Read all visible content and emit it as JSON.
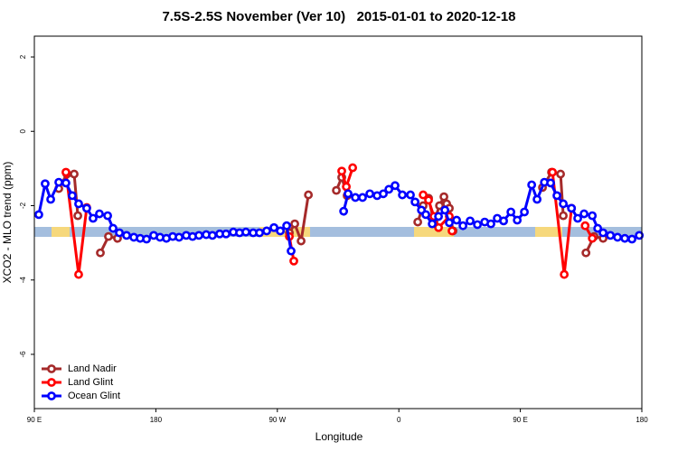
{
  "chart_data": {
    "type": "line",
    "title": "7.5S-2.5S November (Ver 10)   2015-01-01 to 2020-12-18",
    "xlabel": "Longitude",
    "ylabel": "XCO2 - MLO trend (ppm)",
    "xlim": [
      90,
      540
    ],
    "xticks": [
      {
        "value": 90,
        "label": "90 E"
      },
      {
        "value": 180,
        "label": "180"
      },
      {
        "value": 270,
        "label": "90 W"
      },
      {
        "value": 360,
        "label": "0"
      },
      {
        "value": 450,
        "label": "90 E"
      },
      {
        "value": 540,
        "label": "180"
      }
    ],
    "ylim": [
      -7.46,
      2.56
    ],
    "yticks": [
      2,
      0,
      -2,
      -4,
      -6
    ],
    "legend": "lower left",
    "series": [
      {
        "name": "Land Nadir",
        "color": "#a52a2a",
        "x": [
          108.1,
          114.1,
          119.5,
          122.2,
          null,
          138.9,
          144.9,
          151.6,
          null,
          278.9,
          282.9,
          287.6,
          293.0,
          null,
          313.7,
          317.7,
          321.7,
          null,
          374.0,
          378.0,
          382.0,
          386.0,
          390.1,
          393.4,
          395.4,
          397.4,
          400.1,
          null,
          466.4,
          473.1,
          479.8,
          481.8,
          null,
          498.6,
          504.6,
          511.3
        ],
        "values": [
          -1.54,
          -1.15,
          -1.15,
          -2.27,
          null,
          -3.27,
          -2.83,
          -2.88,
          null,
          -2.73,
          -2.49,
          -2.95,
          -1.71,
          null,
          -1.59,
          -1.24,
          -1.73,
          null,
          -2.44,
          -2.0,
          -1.8,
          -2.44,
          -2.0,
          -1.76,
          -1.95,
          -2.07,
          -2.68,
          null,
          -1.51,
          -1.1,
          -1.15,
          -2.27,
          null,
          -3.27,
          -2.83,
          -2.88
        ]
      },
      {
        "name": "Land Glint",
        "color": "#ff0000",
        "x": [
          113.4,
          122.8,
          128.8,
          null,
          278.9,
          282.2,
          null,
          317.7,
          321.1,
          325.8,
          null,
          378.0,
          382.0,
          386.0,
          389.4,
          397.4,
          399.4,
          null,
          473.8,
          482.5,
          487.9,
          null,
          498.0,
          503.3
        ],
        "values": [
          -1.1,
          -3.85,
          -2.05,
          null,
          -2.83,
          -3.49,
          null,
          -1.07,
          -1.49,
          -0.98,
          null,
          -1.71,
          -1.85,
          -2.29,
          -2.59,
          -2.29,
          -2.68,
          null,
          -1.1,
          -3.85,
          -2.07,
          null,
          -2.54,
          -2.88
        ]
      },
      {
        "name": "Ocean Glint",
        "color": "#0000ff",
        "x": [
          93.3,
          98.0,
          102.1,
          108.1,
          113.4,
          118.1,
          122.8,
          128.8,
          133.5,
          138.2,
          144.3,
          148.3,
          153.0,
          158.3,
          163.7,
          168.4,
          173.1,
          178.4,
          183.1,
          187.8,
          192.5,
          197.2,
          202.5,
          207.2,
          211.9,
          217.3,
          221.9,
          227.3,
          232.0,
          237.4,
          242.0,
          246.7,
          252.1,
          256.8,
          262.1,
          267.5,
          272.2,
          276.9,
          280.2,
          null,
          319.1,
          322.4,
          327.8,
          333.1,
          338.5,
          343.9,
          348.5,
          352.6,
          357.2,
          362.6,
          368.6,
          372.0,
          376.7,
          380.0,
          384.7,
          389.4,
          394.1,
          397.4,
          402.8,
          407.5,
          412.8,
          418.2,
          423.6,
          428.2,
          432.9,
          437.6,
          443.0,
          447.7,
          453.0,
          458.4,
          462.4,
          467.8,
          472.4,
          477.1,
          481.8,
          487.9,
          492.5,
          497.2,
          503.3,
          507.3,
          511.3,
          516.7,
          522.0,
          527.4,
          532.7,
          538.1
        ],
        "values": [
          -2.24,
          -1.41,
          -1.83,
          -1.37,
          -1.39,
          -1.73,
          -1.95,
          -2.07,
          -2.34,
          -2.22,
          -2.27,
          -2.61,
          -2.73,
          -2.8,
          -2.85,
          -2.88,
          -2.9,
          -2.8,
          -2.85,
          -2.88,
          -2.83,
          -2.85,
          -2.8,
          -2.83,
          -2.8,
          -2.78,
          -2.8,
          -2.76,
          -2.76,
          -2.71,
          -2.73,
          -2.71,
          -2.73,
          -2.73,
          -2.68,
          -2.59,
          -2.68,
          -2.54,
          -3.22,
          null,
          -2.15,
          -1.68,
          -1.78,
          -1.78,
          -1.68,
          -1.73,
          -1.68,
          -1.56,
          -1.46,
          -1.71,
          -1.71,
          -1.9,
          -2.12,
          -2.24,
          -2.49,
          -2.29,
          -2.12,
          -2.46,
          -2.39,
          -2.54,
          -2.41,
          -2.51,
          -2.44,
          -2.49,
          -2.34,
          -2.41,
          -2.17,
          -2.39,
          -2.17,
          -1.44,
          -1.83,
          -1.37,
          -1.39,
          -1.73,
          -1.95,
          -2.07,
          -2.34,
          -2.22,
          -2.27,
          -2.61,
          -2.73,
          -2.8,
          -2.85,
          -2.88,
          -2.9,
          -2.8
        ]
      }
    ]
  }
}
